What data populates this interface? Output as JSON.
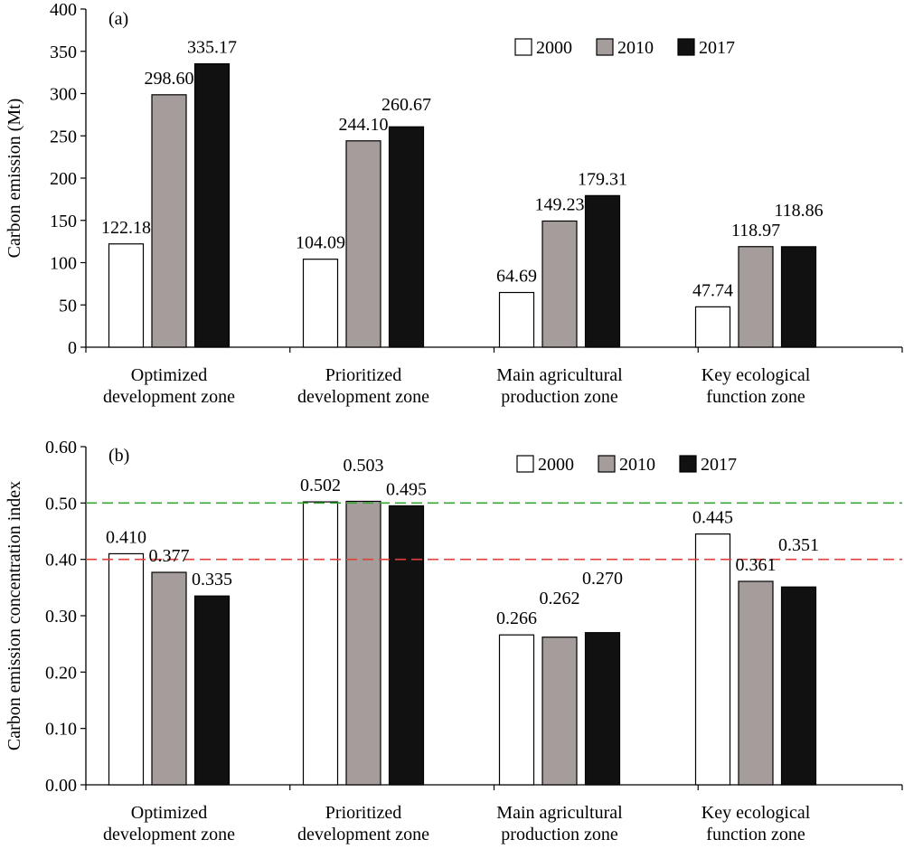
{
  "chart_data": [
    {
      "type": "bar",
      "panel_label": "(a)",
      "ylabel": "Carbon emission (Mt)",
      "ylim": [
        0,
        400
      ],
      "yticks": [
        0,
        50,
        100,
        150,
        200,
        250,
        300,
        350,
        400
      ],
      "tick_decimals": 0,
      "value_decimals": 2,
      "categories": [
        [
          "Optimized",
          "development zone"
        ],
        [
          "Prioritized",
          "development zone"
        ],
        [
          "Main agricultural",
          "production zone"
        ],
        [
          "Key ecological",
          "function zone"
        ]
      ],
      "series": [
        {
          "name": "2000",
          "color": "#ffffff",
          "values": [
            122.18,
            104.09,
            64.69,
            47.74
          ]
        },
        {
          "name": "2010",
          "color": "#a59d9b",
          "values": [
            298.6,
            244.1,
            149.23,
            118.97
          ]
        },
        {
          "name": "2017",
          "color": "#111111",
          "values": [
            335.17,
            260.67,
            179.31,
            118.86
          ]
        }
      ],
      "reference_lines": [],
      "legend_position": "top-right",
      "grid": false
    },
    {
      "type": "bar",
      "panel_label": "(b)",
      "ylabel": "Carbon emission concentration index",
      "ylim": [
        0,
        0.6
      ],
      "yticks": [
        0,
        0.1,
        0.2,
        0.3,
        0.4,
        0.5,
        0.6
      ],
      "tick_decimals": 2,
      "value_decimals": 3,
      "categories": [
        [
          "Optimized",
          "development zone"
        ],
        [
          "Prioritized",
          "development zone"
        ],
        [
          "Main agricultural",
          "production zone"
        ],
        [
          "Key ecological",
          "function zone"
        ]
      ],
      "series": [
        {
          "name": "2000",
          "color": "#ffffff",
          "values": [
            0.41,
            0.502,
            0.266,
            0.445
          ]
        },
        {
          "name": "2010",
          "color": "#a59d9b",
          "values": [
            0.377,
            0.503,
            0.262,
            0.361
          ]
        },
        {
          "name": "2017",
          "color": "#111111",
          "values": [
            0.335,
            0.495,
            0.27,
            0.351
          ]
        }
      ],
      "reference_lines": [
        {
          "value": 0.5,
          "color": "#3aa33a",
          "style": "dashed"
        },
        {
          "value": 0.4,
          "color": "#e0403a",
          "style": "dashed"
        }
      ],
      "legend_position": "top-right",
      "grid": false
    }
  ]
}
